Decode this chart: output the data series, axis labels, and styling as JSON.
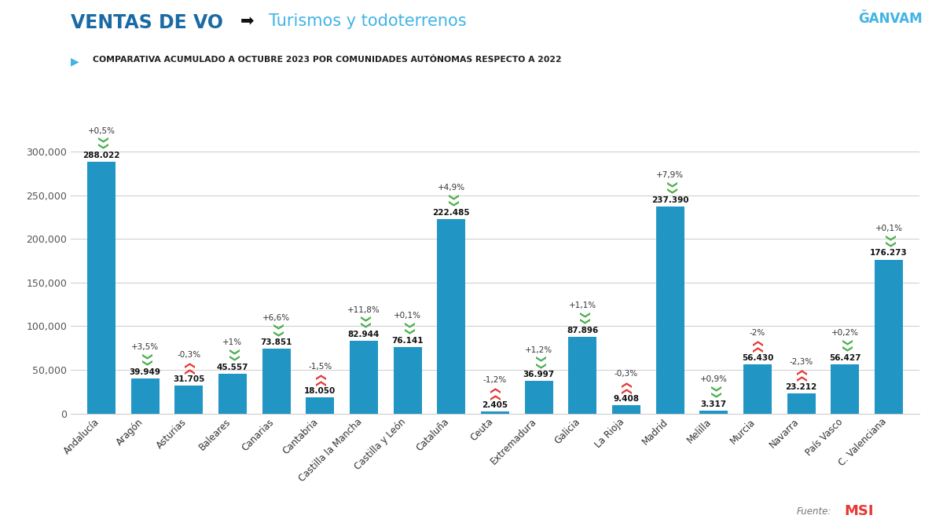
{
  "categories": [
    "Andalucía",
    "Aragón",
    "Asturias",
    "Baleares",
    "Canarias",
    "Cantabria",
    "Castilla la Mancha",
    "Castilla y León",
    "Cataluña",
    "Ceuta",
    "Extremadura",
    "Galicia",
    "La Rioja",
    "Madrid",
    "Melilla",
    "Murcia",
    "Navarra",
    "País Vasco",
    "C. Valenciana"
  ],
  "values": [
    288022,
    39949,
    31705,
    45557,
    73851,
    18050,
    82944,
    76141,
    222485,
    2405,
    36997,
    87896,
    9408,
    237390,
    3317,
    56430,
    23212,
    56427,
    176273
  ],
  "value_labels": [
    "288.022",
    "39.949",
    "31.705",
    "45.557",
    "73.851",
    "18.050",
    "82.944",
    "76.141",
    "222.485",
    "2.405",
    "36.997",
    "87.896",
    "9.408",
    "237.390",
    "3.317",
    "56.430",
    "23.212",
    "56.427",
    "176.273"
  ],
  "pct_labels": [
    "+0,5%",
    "+3,5%",
    "-0,3%",
    "+1%",
    "+6,6%",
    "-1,5%",
    "+11,8%",
    "+0,1%",
    "+4,9%",
    "-1,2%",
    "+1,2%",
    "+1,1%",
    "-0,3%",
    "+7,9%",
    "+0,9%",
    "-2%",
    "-2,3%",
    "+0,2%",
    "+0,1%"
  ],
  "pct_positive": [
    true,
    true,
    false,
    true,
    true,
    false,
    true,
    true,
    true,
    false,
    true,
    true,
    false,
    true,
    true,
    false,
    false,
    true,
    true
  ],
  "bar_color": "#2196c4",
  "positive_color": "#4caf50",
  "negative_color": "#e53935",
  "title_left": "VENTAS DE VO",
  "title_right": "Turismos y todoterrenos",
  "subtitle": "COMPARATIVA ACUMULADO A OCTUBRE 2023 POR COMUNIDADES AUTÓNOMAS RESPECTO A 2022",
  "title_left_color": "#1a6aa5",
  "title_right_color": "#40b4e5",
  "subtitle_color": "#212121",
  "bg_color": "#ffffff",
  "ylim": [
    0,
    340000
  ],
  "yticks": [
    0,
    50000,
    100000,
    150000,
    200000,
    250000,
    300000
  ],
  "ytick_labels": [
    "0",
    "50,000",
    "100,000",
    "150,000",
    "200,000",
    "250,000",
    "300,000"
  ],
  "ganvam_color": "#40b4e5"
}
